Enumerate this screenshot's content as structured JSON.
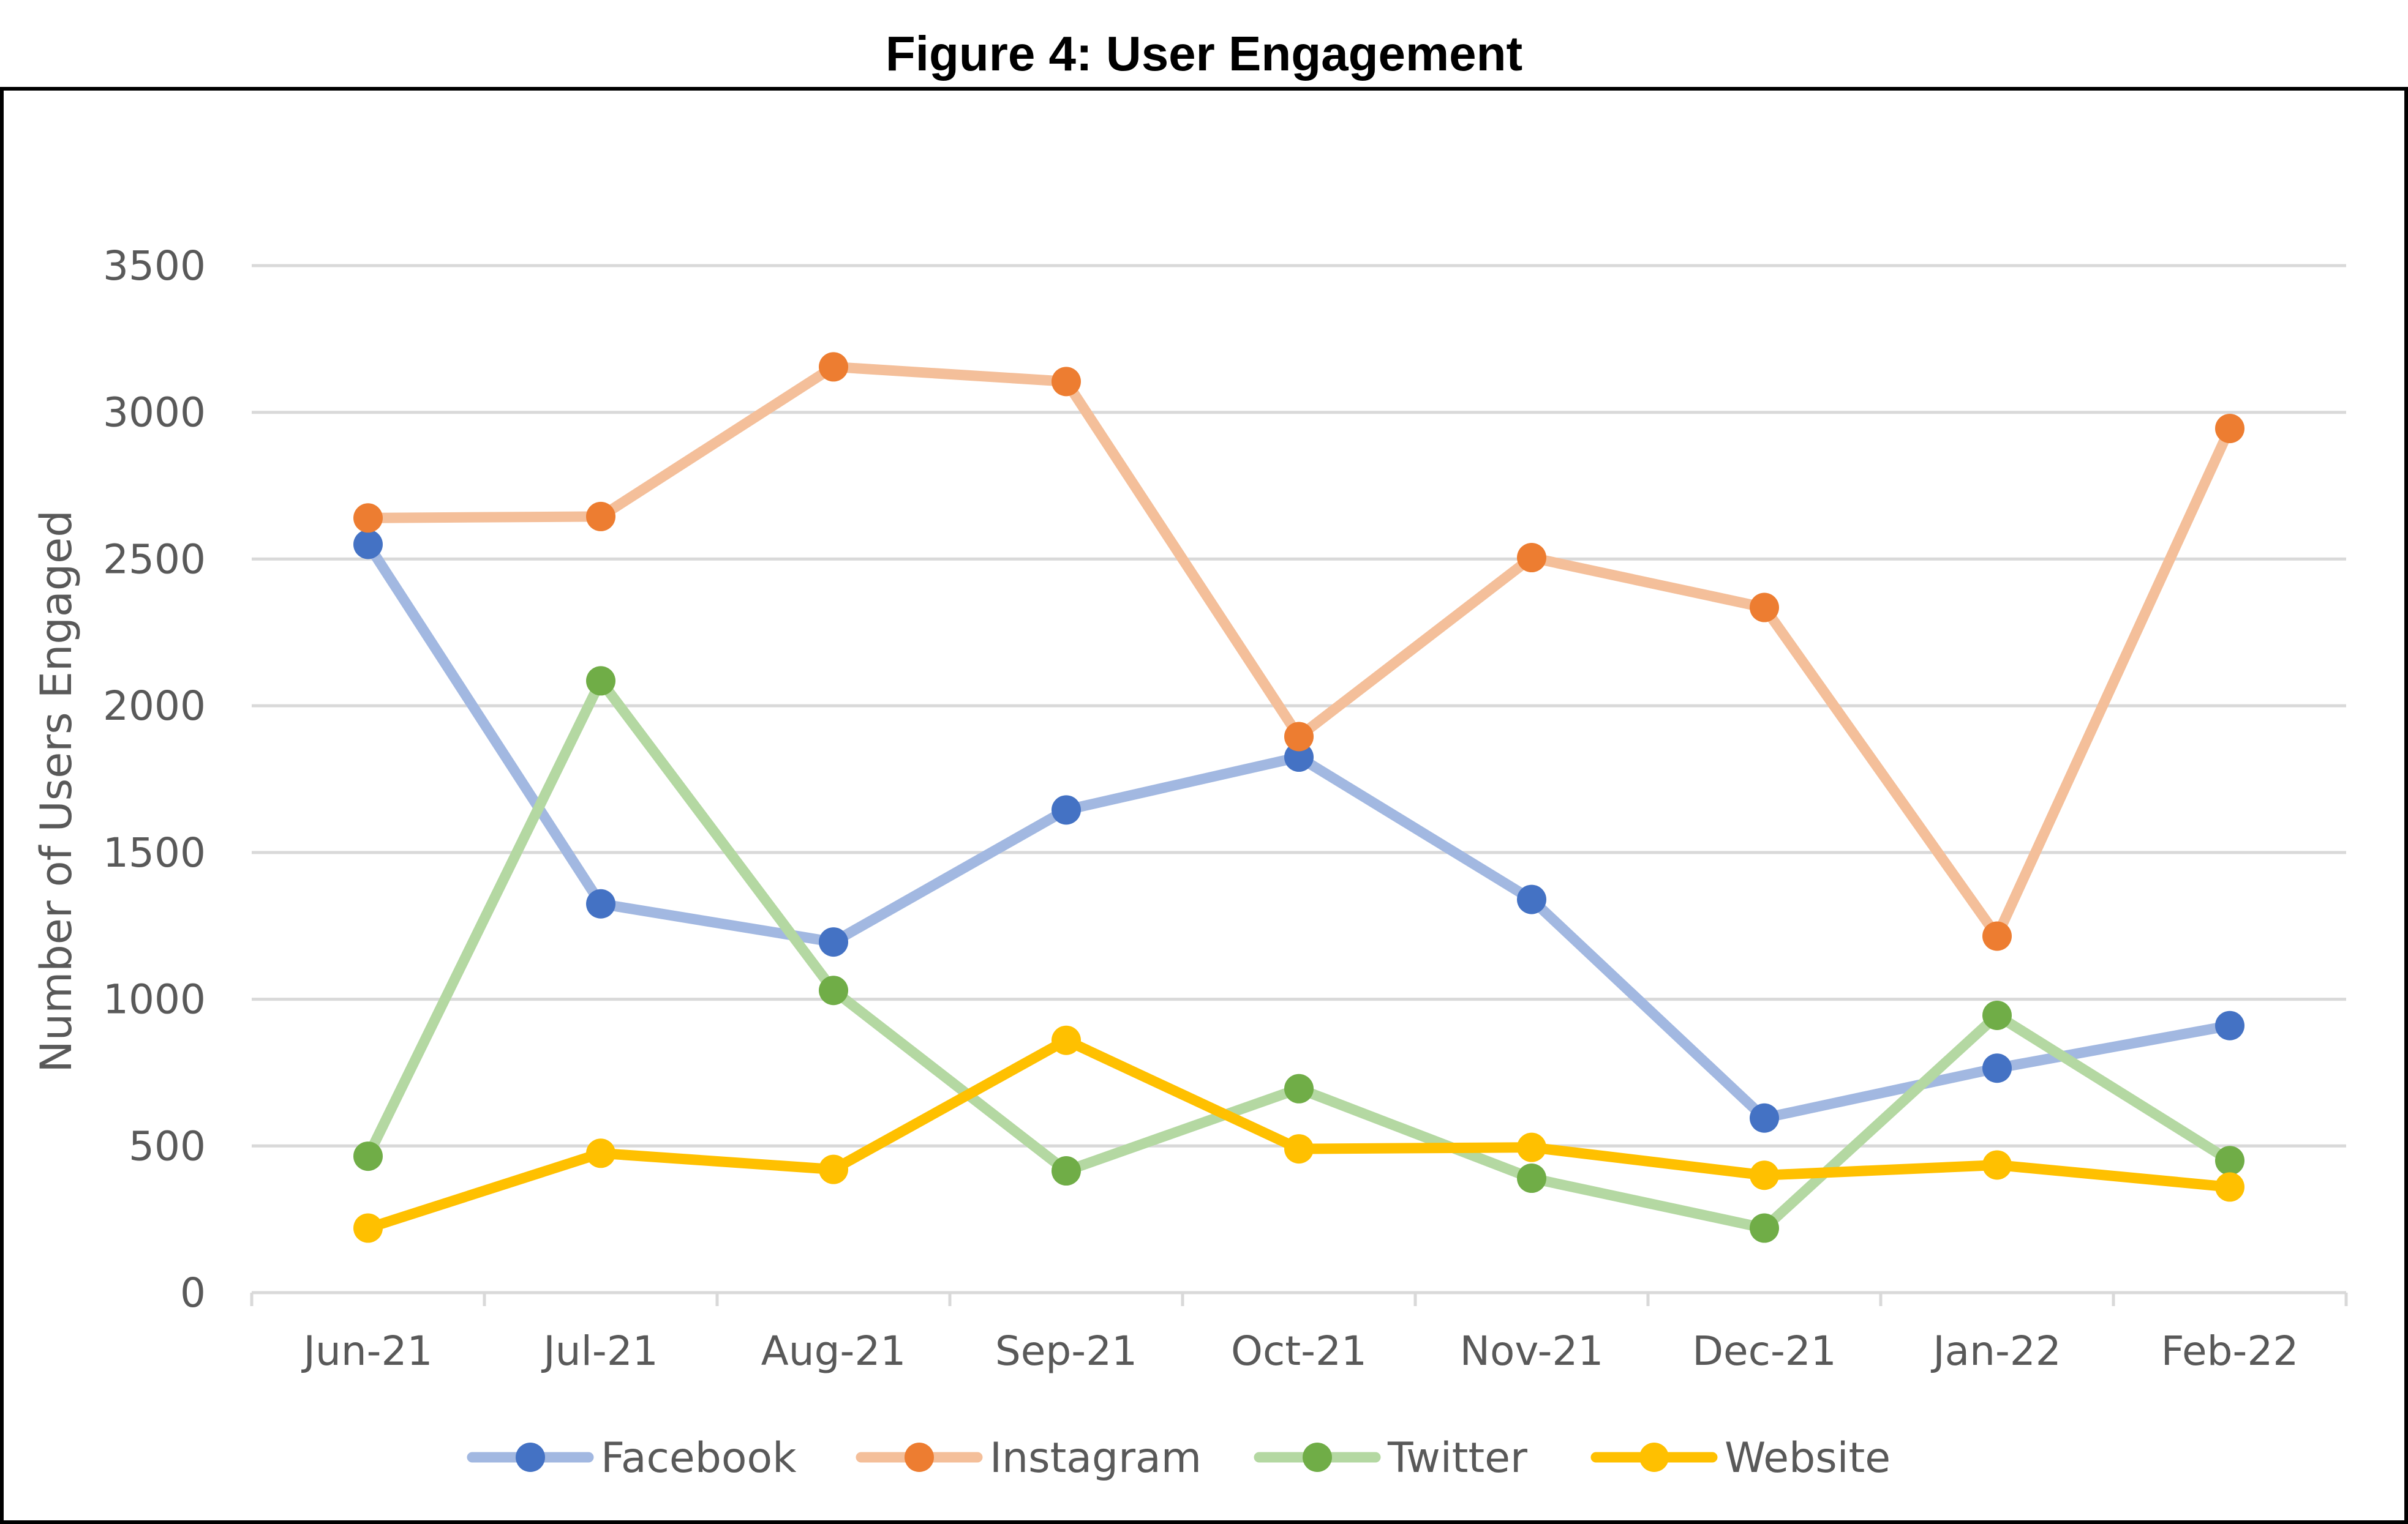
{
  "chart_data": {
    "type": "line",
    "title": "Figure 4: User Engagement",
    "xlabel": "",
    "ylabel": "Number of Users Engaged",
    "categories": [
      "Jun-21",
      "Jul-21",
      "Aug-21",
      "Sep-21",
      "Oct-21",
      "Nov-21",
      "Dec-21",
      "Jan-22",
      "Feb-22"
    ],
    "ylim": [
      0,
      3500
    ],
    "yticks": [
      "0",
      "500",
      "1000",
      "1500",
      "2000",
      "2500",
      "3000",
      "3500"
    ],
    "grid": true,
    "legend_position": "bottom",
    "series": [
      {
        "name": "Facebook",
        "line_color": "#a2b8e1",
        "marker_color": "#4472c4",
        "values": [
          2550,
          1325,
          1195,
          1645,
          1825,
          1340,
          595,
          765,
          910
        ]
      },
      {
        "name": "Instagram",
        "line_color": "#f4bf9a",
        "marker_color": "#ed7d31",
        "values": [
          2640,
          2645,
          3155,
          3105,
          1895,
          2505,
          2335,
          1215,
          2945
        ]
      },
      {
        "name": "Twitter",
        "line_color": "#b4d8a2",
        "marker_color": "#70ad47",
        "values": [
          465,
          2085,
          1030,
          415,
          695,
          390,
          220,
          945,
          450
        ]
      },
      {
        "name": "Website",
        "line_color": "#ffc000",
        "marker_color": "#ffc000",
        "values": [
          220,
          475,
          420,
          860,
          490,
          495,
          400,
          435,
          360
        ]
      }
    ]
  }
}
